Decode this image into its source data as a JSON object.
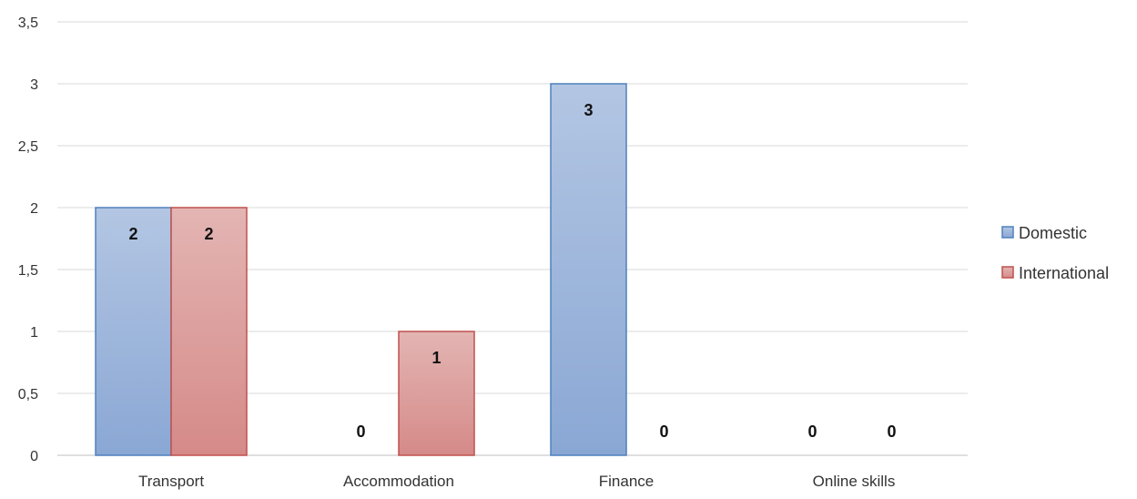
{
  "chart_data": {
    "type": "bar",
    "title": "",
    "xlabel": "",
    "ylabel": "",
    "categories": [
      "Transport",
      "Accommodation",
      "Finance",
      "Online skills"
    ],
    "series": [
      {
        "name": "Domestic",
        "values": [
          2,
          0,
          3,
          0
        ],
        "color": "#4f81bd"
      },
      {
        "name": "International",
        "values": [
          2,
          1,
          0,
          0
        ],
        "color": "#c0504d"
      }
    ],
    "data_labels": [
      [
        "2",
        "0",
        "3",
        "0"
      ],
      [
        "2",
        "1",
        "0",
        "0"
      ]
    ],
    "ylim": [
      0,
      3.5
    ],
    "yticks": [
      "0",
      "0,5",
      "1",
      "1,5",
      "2",
      "2,5",
      "3",
      "3,5"
    ],
    "grid": true,
    "legend_position": "right"
  }
}
